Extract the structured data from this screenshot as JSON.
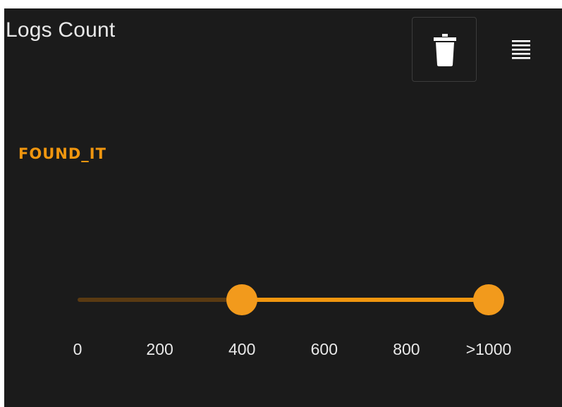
{
  "header": {
    "title": "Logs Count",
    "delete_icon": "trash-icon",
    "menu_icon": "menu-lines-icon"
  },
  "filter": {
    "label": "FOUND_IT",
    "range": {
      "min": 0,
      "max": 1000,
      "low": 400,
      "high": 1000
    },
    "ticks": [
      "0",
      "200",
      "400",
      "600",
      "800",
      ">1000"
    ]
  },
  "colors": {
    "background": "#1b1b1b",
    "accent": "#f0960f",
    "text": "#e8e8e8",
    "track_inactive": "#5a3a12"
  }
}
